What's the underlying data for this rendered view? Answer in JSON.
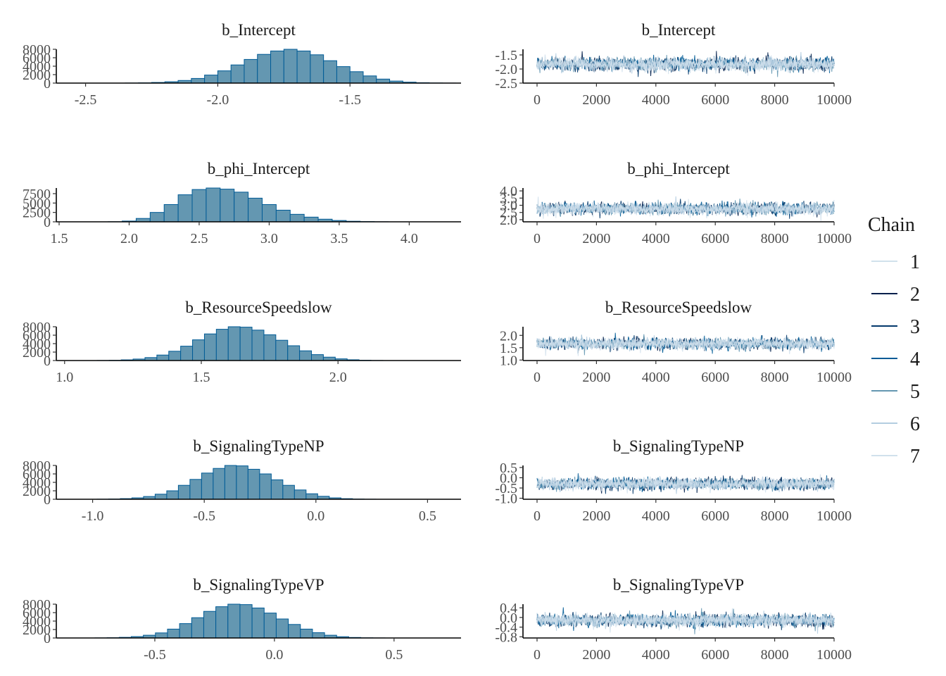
{
  "legend": {
    "title": "Chain",
    "entries": [
      {
        "label": "1",
        "color": "#d1e1ec"
      },
      {
        "label": "2",
        "color": "#011f4b"
      },
      {
        "label": "3",
        "color": "#03396c"
      },
      {
        "label": "4",
        "color": "#005b96"
      },
      {
        "label": "5",
        "color": "#6497b1"
      },
      {
        "label": "6",
        "color": "#b3cde0"
      },
      {
        "label": "7",
        "color": "#d1e1ec"
      }
    ]
  },
  "colors": {
    "hist_fill": "#6497b1",
    "hist_stroke": "#005b96",
    "trace_band": "#d1e1ec",
    "trace_dark": "#03396c"
  },
  "chart_data": [
    {
      "type": "bar",
      "panel": "histogram",
      "title": "b_Intercept",
      "xlim": [
        -2.6,
        -1.08
      ],
      "ylim": [
        0,
        8000
      ],
      "xticks": [
        -2.5,
        -2.0,
        -1.5
      ],
      "xtick_labels": [
        "-2.5",
        "-2.0",
        "-1.5"
      ],
      "yticks": [
        0,
        2000,
        4000,
        6000,
        8000
      ],
      "ytick_labels": [
        "0",
        "2000",
        "4000",
        "6000",
        "8000"
      ],
      "bin_start": -2.35,
      "bin_width": 0.05,
      "counts": [
        20,
        60,
        150,
        320,
        620,
        1100,
        1900,
        2900,
        4300,
        5600,
        6800,
        7600,
        8000,
        7600,
        6700,
        5300,
        3900,
        2700,
        1700,
        950,
        480,
        220,
        90,
        30,
        10
      ]
    },
    {
      "type": "line",
      "panel": "trace",
      "title": "b_Intercept",
      "xlim": [
        0,
        10000
      ],
      "ylim": [
        -2.5,
        -1.3
      ],
      "xticks": [
        0,
        2000,
        4000,
        6000,
        8000,
        10000
      ],
      "xtick_labels": [
        "0",
        "2000",
        "4000",
        "6000",
        "8000",
        "10000"
      ],
      "yticks": [
        -2.5,
        -2.0,
        -1.5
      ],
      "ytick_labels": [
        "-2.5",
        "-2.0",
        "-1.5"
      ],
      "center": -1.83,
      "spread": 0.18
    },
    {
      "type": "bar",
      "panel": "histogram",
      "title": "b_phi_Intercept",
      "xlim": [
        1.5,
        4.37
      ],
      "ylim": [
        0,
        9000
      ],
      "xticks": [
        1.5,
        2.0,
        2.5,
        3.0,
        3.5,
        4.0
      ],
      "xtick_labels": [
        "1.5",
        "2.0",
        "2.5",
        "3.0",
        "3.5",
        "4.0"
      ],
      "yticks": [
        0,
        2500,
        5000,
        7500
      ],
      "ytick_labels": [
        "0",
        "2500",
        "5000",
        "7500"
      ],
      "bin_start": 1.85,
      "bin_width": 0.1,
      "counts": [
        30,
        200,
        900,
        2500,
        4600,
        7200,
        8600,
        9000,
        8700,
        7900,
        6300,
        4600,
        3100,
        2000,
        1250,
        700,
        350,
        150,
        60,
        20
      ]
    },
    {
      "type": "line",
      "panel": "trace",
      "title": "b_phi_Intercept",
      "xlim": [
        0,
        10000
      ],
      "ylim": [
        1.85,
        4.2
      ],
      "xticks": [
        0,
        2000,
        4000,
        6000,
        8000,
        10000
      ],
      "xtick_labels": [
        "0",
        "2000",
        "4000",
        "6000",
        "8000",
        "10000"
      ],
      "yticks": [
        2.0,
        2.5,
        3.0,
        3.5,
        4.0
      ],
      "ytick_labels": [
        "2.0",
        "2.5",
        "3.0",
        "3.5",
        "4.0"
      ],
      "center": 2.75,
      "spread": 0.32
    },
    {
      "type": "bar",
      "panel": "histogram",
      "title": "b_ResourceSpeedslow",
      "xlim": [
        0.98,
        2.45
      ],
      "ylim": [
        0,
        8000
      ],
      "xticks": [
        1.0,
        1.5,
        2.0
      ],
      "xtick_labels": [
        "1.0",
        "1.5",
        "2.0"
      ],
      "yticks": [
        0,
        2000,
        4000,
        6000,
        8000
      ],
      "ytick_labels": [
        "0",
        "2000",
        "4000",
        "6000",
        "8000"
      ],
      "bin_start": 1.12,
      "bin_width": 0.0435,
      "counts": [
        20,
        60,
        160,
        350,
        700,
        1300,
        2200,
        3400,
        4900,
        6300,
        7400,
        8000,
        7900,
        7200,
        6100,
        4800,
        3500,
        2300,
        1400,
        800,
        400,
        180,
        70,
        20
      ]
    },
    {
      "type": "line",
      "panel": "trace",
      "title": "b_ResourceSpeedslow",
      "xlim": [
        0,
        10000
      ],
      "ylim": [
        0.98,
        2.35
      ],
      "xticks": [
        0,
        2000,
        4000,
        6000,
        8000,
        10000
      ],
      "xtick_labels": [
        "0",
        "2000",
        "4000",
        "6000",
        "8000",
        "10000"
      ],
      "yticks": [
        1.0,
        1.5,
        2.0
      ],
      "ytick_labels": [
        "1.0",
        "1.5",
        "2.0"
      ],
      "center": 1.66,
      "spread": 0.18
    },
    {
      "type": "bar",
      "panel": "histogram",
      "title": "b_SignalingTypeNP",
      "xlim": [
        -1.15,
        0.65
      ],
      "ylim": [
        0,
        8000
      ],
      "xticks": [
        -1.0,
        -0.5,
        0.0,
        0.5
      ],
      "xtick_labels": [
        "-1.0",
        "-0.5",
        "0.0",
        "0.5"
      ],
      "yticks": [
        0,
        2000,
        4000,
        6000,
        8000
      ],
      "ytick_labels": [
        "0",
        "2000",
        "4000",
        "6000",
        "8000"
      ],
      "bin_start": -0.98,
      "bin_width": 0.052,
      "counts": [
        20,
        60,
        150,
        330,
        650,
        1200,
        2000,
        3300,
        4700,
        6200,
        7300,
        8000,
        7900,
        7100,
        6000,
        4600,
        3300,
        2200,
        1300,
        700,
        330,
        140,
        50,
        15
      ]
    },
    {
      "type": "line",
      "panel": "trace",
      "title": "b_SignalingTypeNP",
      "xlim": [
        0,
        10000
      ],
      "ylim": [
        -1.05,
        0.6
      ],
      "xticks": [
        0,
        2000,
        4000,
        6000,
        8000,
        10000
      ],
      "xtick_labels": [
        "0",
        "2000",
        "4000",
        "6000",
        "8000",
        "10000"
      ],
      "yticks": [
        -1.0,
        -0.5,
        0.0,
        0.5
      ],
      "ytick_labels": [
        "-1.0",
        "-0.5",
        "0.0",
        "0.5"
      ],
      "center": -0.3,
      "spread": 0.22
    },
    {
      "type": "bar",
      "panel": "histogram",
      "title": "b_SignalingTypeVP",
      "xlim": [
        -0.9,
        0.78
      ],
      "ylim": [
        0,
        8000
      ],
      "xticks": [
        -0.5,
        0.0,
        0.5
      ],
      "xtick_labels": [
        "-0.5",
        "0.0",
        "0.5"
      ],
      "yticks": [
        0,
        2000,
        4000,
        6000,
        8000
      ],
      "ytick_labels": [
        "0",
        "2000",
        "4000",
        "6000",
        "8000"
      ],
      "bin_start": -0.75,
      "bin_width": 0.0505,
      "counts": [
        20,
        60,
        150,
        330,
        650,
        1200,
        2100,
        3400,
        4800,
        6300,
        7400,
        8000,
        7900,
        7100,
        5900,
        4500,
        3200,
        2100,
        1250,
        650,
        300,
        120,
        40,
        15
      ]
    },
    {
      "type": "line",
      "panel": "trace",
      "title": "b_SignalingTypeVP",
      "xlim": [
        0,
        10000
      ],
      "ylim": [
        -0.85,
        0.55
      ],
      "xticks": [
        0,
        2000,
        4000,
        6000,
        8000,
        10000
      ],
      "xtick_labels": [
        "0",
        "2000",
        "4000",
        "6000",
        "8000",
        "10000"
      ],
      "yticks": [
        -0.8,
        -0.4,
        0.0,
        0.4
      ],
      "ytick_labels": [
        "-0.8",
        "-0.4",
        "0.0",
        "0.4"
      ],
      "center": -0.12,
      "spread": 0.2
    }
  ]
}
